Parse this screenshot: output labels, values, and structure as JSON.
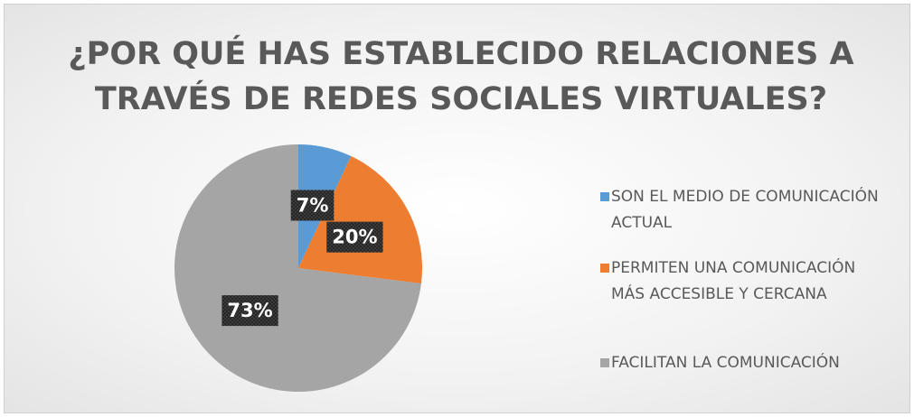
{
  "chart_data": {
    "type": "pie",
    "title": "¿POR QUÉ HAS ESTABLECIDO RELACIONES A TRAVÉS DE REDES SOCIALES VIRTUALES?",
    "categories": [
      "SON EL MEDIO DE COMUNICACIÓN ACTUAL",
      "PERMITEN UNA COMUNICACIÓN MÁS ACCESIBLE Y CERCANA",
      "FACILITAN LA COMUNICACIÓN"
    ],
    "values": [
      7,
      20,
      73
    ],
    "value_labels": [
      "7%",
      "20%",
      "73%"
    ],
    "colors": [
      "#5b9bd5",
      "#ed7d31",
      "#a5a5a5"
    ],
    "legend": "right"
  }
}
